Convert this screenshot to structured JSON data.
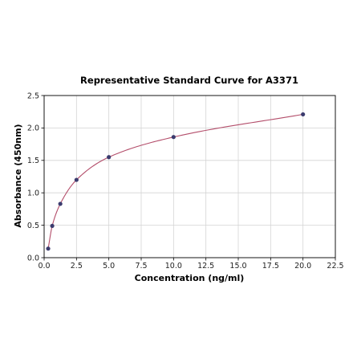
{
  "chart_data": {
    "type": "scatter",
    "title": "Representative Standard Curve for A3371",
    "xlabel": "Concentration (ng/ml)",
    "ylabel": "Absorbance (450nm)",
    "xlim": [
      0,
      22.5
    ],
    "ylim": [
      0,
      2.5
    ],
    "x_ticks": [
      "0.0",
      "2.5",
      "5.0",
      "7.5",
      "10.0",
      "12.5",
      "15.0",
      "17.5",
      "20.0",
      "22.5"
    ],
    "y_ticks": [
      "0.0",
      "0.5",
      "1.0",
      "1.5",
      "2.0",
      "2.5"
    ],
    "x_tick_values": [
      0,
      2.5,
      5,
      7.5,
      10,
      12.5,
      15,
      17.5,
      20,
      22.5
    ],
    "y_tick_values": [
      0,
      0.5,
      1.0,
      1.5,
      2.0,
      2.5
    ],
    "grid": true,
    "series": [
      {
        "points": [
          {
            "x": 0.3125,
            "y": 0.14
          },
          {
            "x": 0.625,
            "y": 0.49
          },
          {
            "x": 1.25,
            "y": 0.83
          },
          {
            "x": 2.5,
            "y": 1.2
          },
          {
            "x": 5,
            "y": 1.55
          },
          {
            "x": 10,
            "y": 1.86
          },
          {
            "x": 20,
            "y": 2.21
          }
        ],
        "marker_color": "#3b3b6e",
        "fit_line_color": "#b34d6a"
      }
    ]
  }
}
